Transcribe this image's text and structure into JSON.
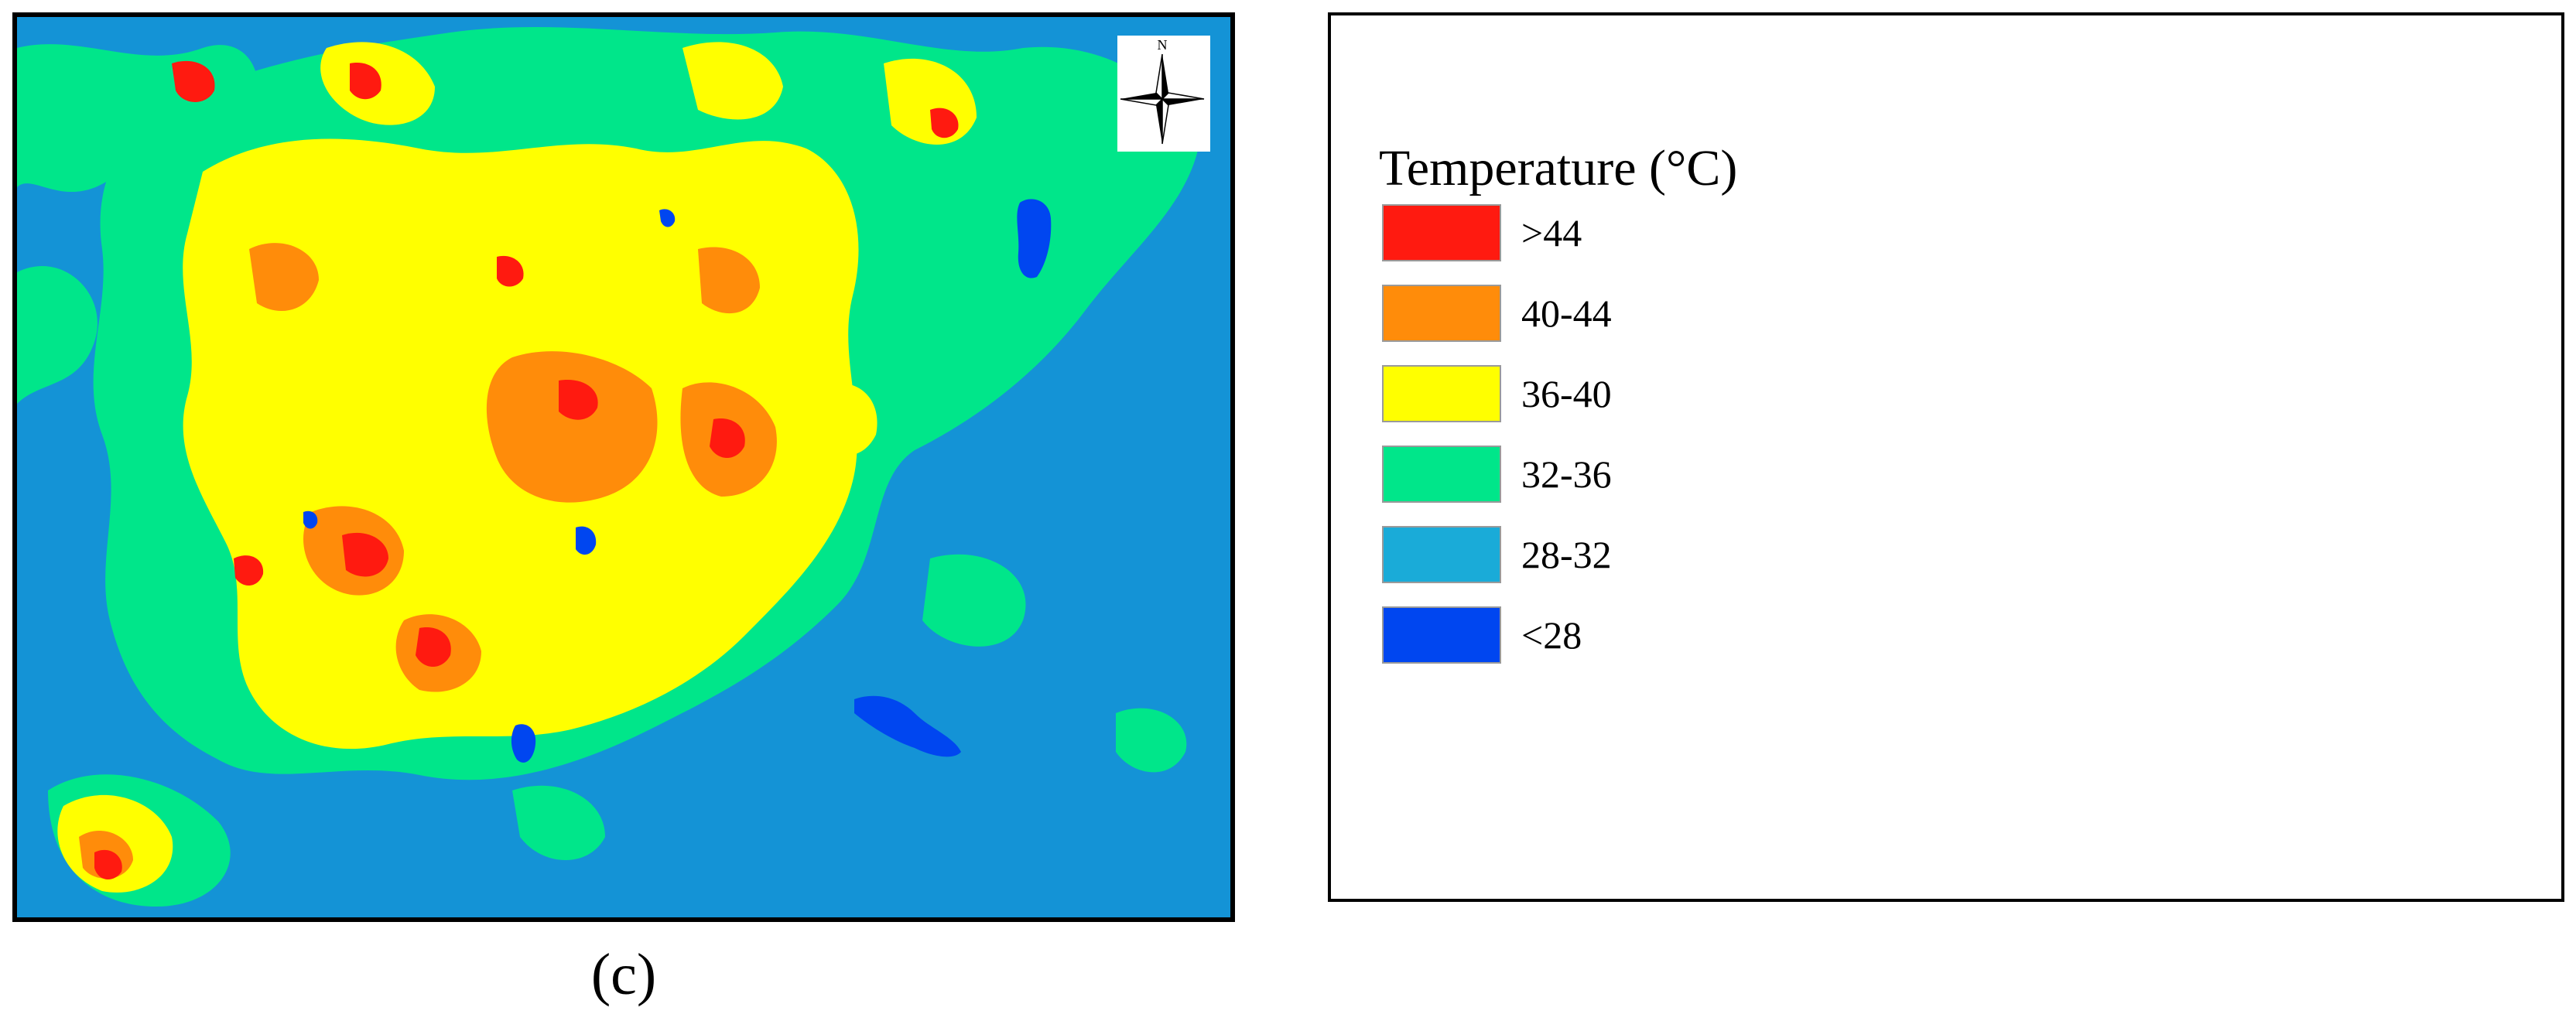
{
  "figure": {
    "panel_label": "(c)",
    "compass_label": "N"
  },
  "legend": {
    "title": "Temperature (°C)",
    "items": [
      {
        "label": ">44",
        "color": "#ff1a10"
      },
      {
        "label": "40-44",
        "color": "#ff8c0a"
      },
      {
        "label": "36-40",
        "color": "#ffff00"
      },
      {
        "label": "32-36",
        "color": "#00e68a"
      },
      {
        "label": "28-32",
        "color": "#1aabd8"
      },
      {
        "label": "<28",
        "color": "#0046f0"
      }
    ]
  },
  "colors": {
    "background_class": "#1493d6",
    "border": "#000000"
  }
}
